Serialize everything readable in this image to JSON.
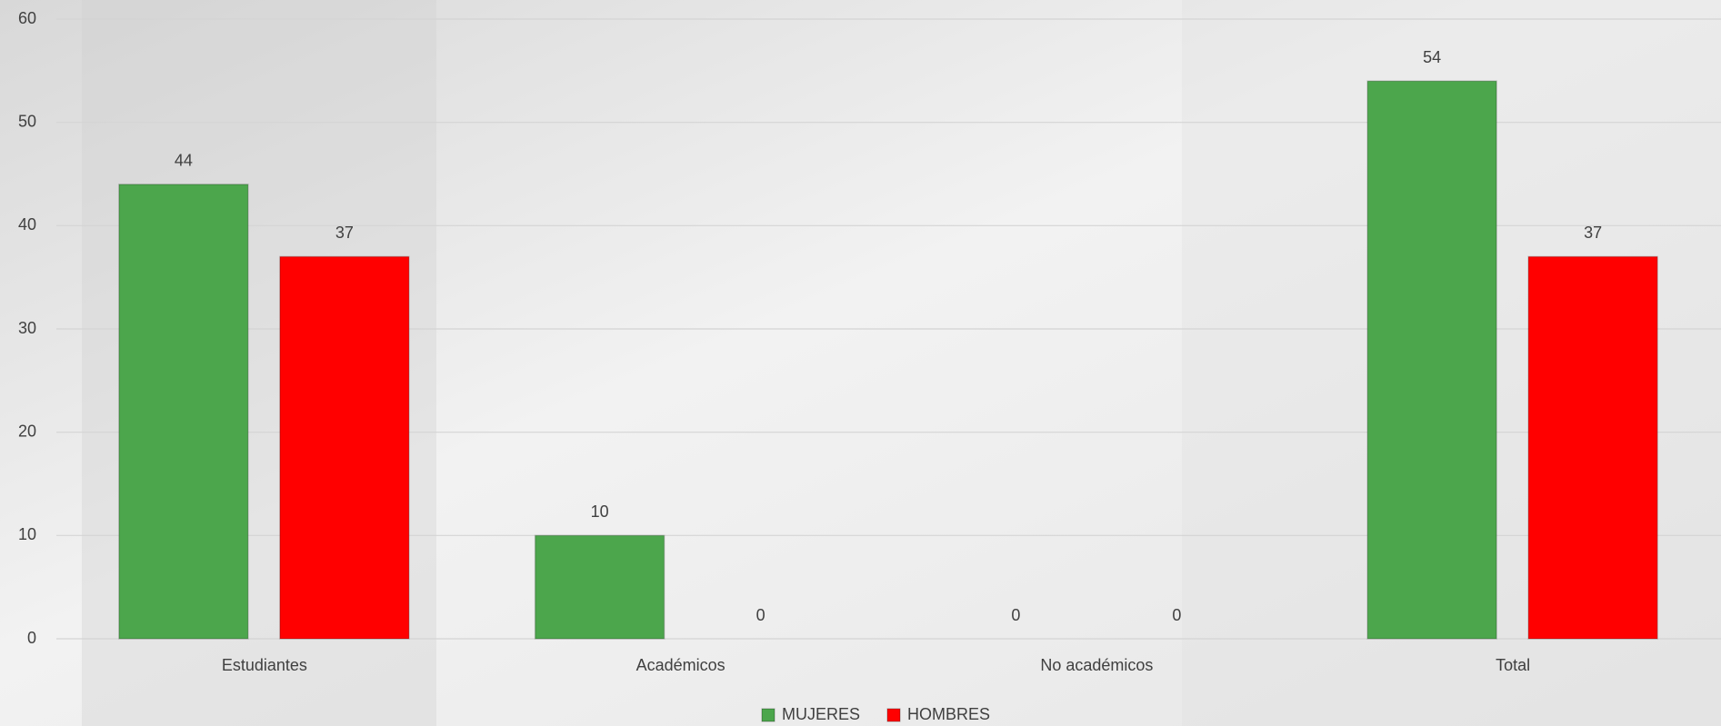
{
  "chart_data": {
    "type": "bar",
    "categories": [
      "Estudiantes",
      "Académicos",
      "No académicos",
      "Total"
    ],
    "series": [
      {
        "name": "MUJERES",
        "color": "#4ca64c",
        "values": [
          44,
          10,
          0,
          54
        ]
      },
      {
        "name": "HOMBRES",
        "color": "#ff0000",
        "values": [
          37,
          0,
          0,
          37
        ]
      }
    ],
    "ylim": [
      0,
      60
    ],
    "yticks": [
      0,
      10,
      20,
      30,
      40,
      50,
      60
    ],
    "grid": true,
    "legend": "bottom"
  }
}
